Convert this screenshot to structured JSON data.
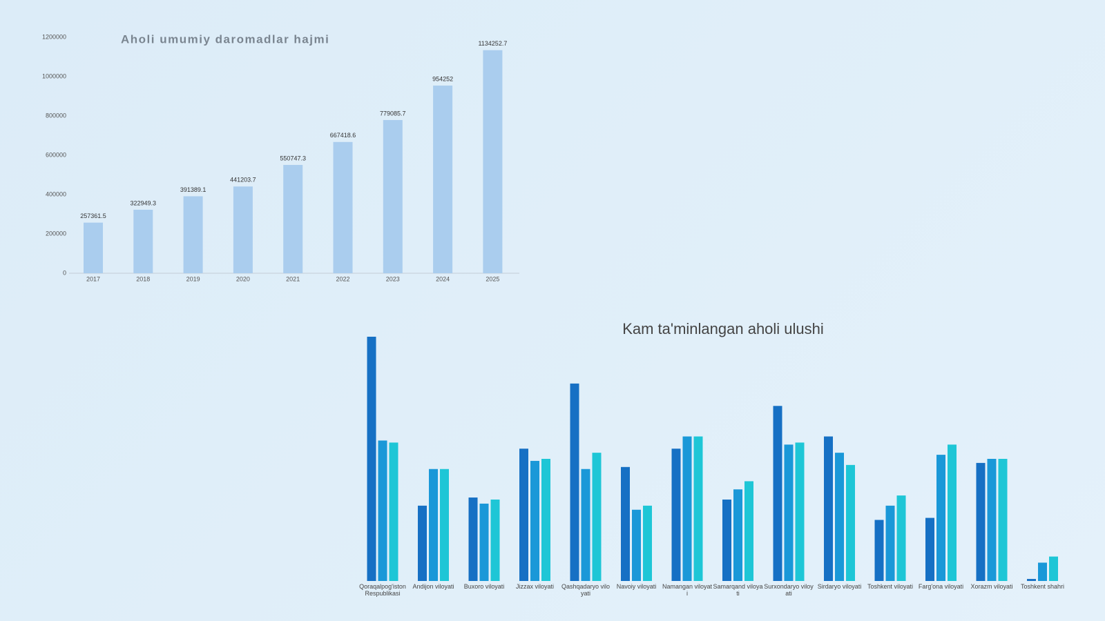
{
  "chart_data": [
    {
      "type": "bar",
      "title": "Aholi umumiy daromadlar hajmi",
      "categories": [
        "2017",
        "2018",
        "2019",
        "2020",
        "2021",
        "2022",
        "2023",
        "2024",
        "2025"
      ],
      "values": [
        257361.5,
        322949.3,
        391389.1,
        441203.7,
        550747.3,
        667418.6,
        779085.7,
        954252,
        1134252.7
      ],
      "color": "#aacdee",
      "ylim": [
        0,
        1200000
      ],
      "yticks": [
        0,
        200000,
        400000,
        600000,
        800000,
        1000000,
        1200000
      ]
    },
    {
      "type": "grouped-bar",
      "title": "Kam ta'minlangan aholi ulushi",
      "categories": [
        "Qoraqalpog'iston Respublikasi",
        "Andijon viloyati",
        "Buxoro viloyati",
        "Jizzax viloyati",
        "Qashqadaryo viloyati",
        "Navoiy viloyati",
        "Namangan viloyati",
        "Samarqand viloyati",
        "Surxondaryo viloyati",
        "Sirdaryo viloyati",
        "Toshkent viloyati",
        "Farg'ona viloyati",
        "Xorazm viloyati",
        "Toshkent shahri"
      ],
      "series": [
        {
          "color": "#1670c4",
          "values": [
            12.0,
            3.7,
            4.1,
            6.5,
            9.7,
            5.6,
            6.5,
            4.0,
            8.6,
            7.1,
            3.0,
            3.1,
            5.8,
            0.1
          ]
        },
        {
          "color": "#1a98d8",
          "values": [
            6.9,
            5.5,
            3.8,
            5.9,
            5.5,
            3.5,
            7.1,
            4.5,
            6.7,
            6.3,
            3.7,
            6.2,
            6.0,
            0.9
          ]
        },
        {
          "color": "#1ec6d6",
          "values": [
            6.8,
            5.5,
            4.0,
            6.0,
            6.3,
            3.7,
            7.1,
            4.9,
            6.8,
            5.7,
            4.2,
            6.7,
            6.0,
            1.2
          ]
        }
      ]
    }
  ]
}
